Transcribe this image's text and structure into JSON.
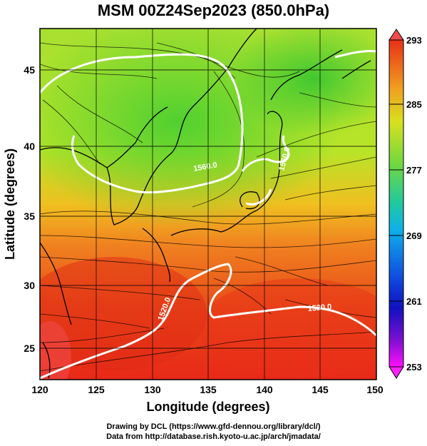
{
  "title": "MSM 00Z24Sep2023 (850.0hPa)",
  "axes": {
    "xlabel": "Longitude (degrees)",
    "ylabel": "Latitude  (degrees)",
    "xticks": [
      "120",
      "125",
      "130",
      "135",
      "140",
      "145",
      "150"
    ],
    "yticks": [
      "25",
      "30",
      "35",
      "40",
      "45"
    ]
  },
  "colorbar": {
    "ticks": [
      "293",
      "285",
      "277",
      "269",
      "261",
      "253"
    ]
  },
  "contour_labels": [
    "1560.0",
    "1560.0",
    "1520.0",
    "1520.0"
  ],
  "footer": {
    "line1": "Drawing by DCL (https://www.gfd-dennou.org/library/dcl/)",
    "line2": "Data from http://database.rish.kyoto-u.ac.jp/arch/jmadata/"
  },
  "map_data": {
    "type": "map",
    "lon_range": [
      120,
      150
    ],
    "lat_range": [
      22.5,
      47.5
    ],
    "field": "temperature (K), shaded",
    "color_range": [
      253,
      293
    ],
    "contours": "geopotential height (m), white",
    "vectors": "wind streamlines",
    "colors": {
      "cold": "#ff00ff",
      "mid_blue": "#1020d0",
      "cyan": "#10c8e0",
      "green": "#30d040",
      "yellow_green": "#b8e020",
      "orange": "#f08020",
      "red": "#e82818"
    }
  }
}
